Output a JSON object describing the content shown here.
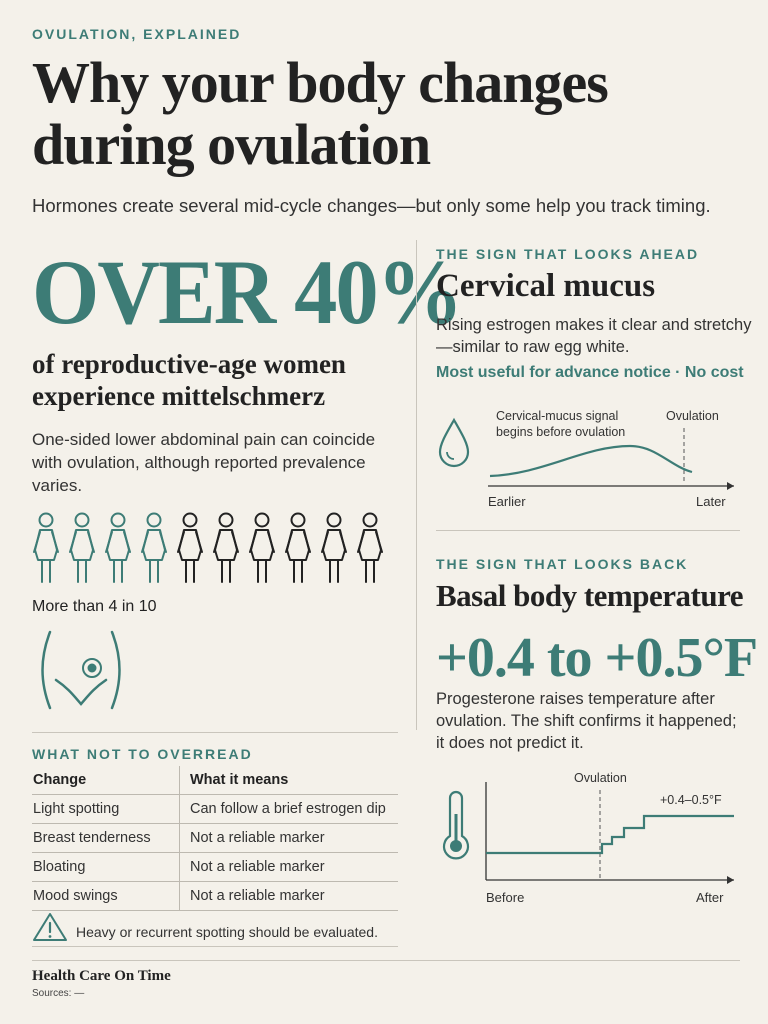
{
  "header": {
    "kicker": "OVULATION, EXPLAINED",
    "title": "Why your body changes during ovulation",
    "subtitle": "Hormones create several mid-cycle changes—but only some help you track timing."
  },
  "mittelschmerz": {
    "big_stat": "OVER 40%",
    "caption": "of reproductive-age women experience mittelschmerz",
    "body": "One-sided lower abdominal pain can coincide with ovulation, although reported prevalence varies.",
    "people_total": 10,
    "people_highlighted": 4,
    "people_label": "More than 4 in 10",
    "icon": "pelvis-pain-icon"
  },
  "mucus": {
    "kicker": "THE SIGN THAT LOOKS AHEAD",
    "title": "Cervical mucus",
    "body": "Rising estrogen makes it clear and stretchy—similar to raw egg white.",
    "note": "Most useful for advance notice · No cost",
    "icon": "droplet-icon",
    "chart": {
      "annotation": "Cervical-mucus signal begins before ovulation",
      "ovulation_label": "Ovulation",
      "x_start": "Earlier",
      "x_end": "Later"
    }
  },
  "bbt": {
    "kicker": "THE SIGN THAT LOOKS BACK",
    "title": "Basal body temperature",
    "stat": "+0.4 to +0.5°F",
    "body": "Progesterone raises temperature after ovulation. The shift confirms it happened; it does not predict it.",
    "icon": "thermometer-icon",
    "chart": {
      "ovulation_label": "Ovulation",
      "shift_label": "+0.4–0.5°F",
      "x_start": "Before",
      "x_end": "After"
    }
  },
  "overread": {
    "kicker": "WHAT NOT TO OVERREAD",
    "headers": [
      "Change",
      "What it means"
    ],
    "rows": [
      [
        "Light spotting",
        "Can follow a brief estrogen dip"
      ],
      [
        "Breast tenderness",
        "Not a reliable marker"
      ],
      [
        "Bloating",
        "Not a reliable marker"
      ],
      [
        "Mood swings",
        "Not a reliable marker"
      ]
    ],
    "warning": "Heavy or recurrent spotting should be evaluated.",
    "warning_icon": "warning-icon"
  },
  "footer": {
    "brand": "Health Care On Time",
    "sources": "Sources: —"
  },
  "colors": {
    "accent": "#3d7c76",
    "background": "#f4f1ea",
    "text": "#222222"
  }
}
